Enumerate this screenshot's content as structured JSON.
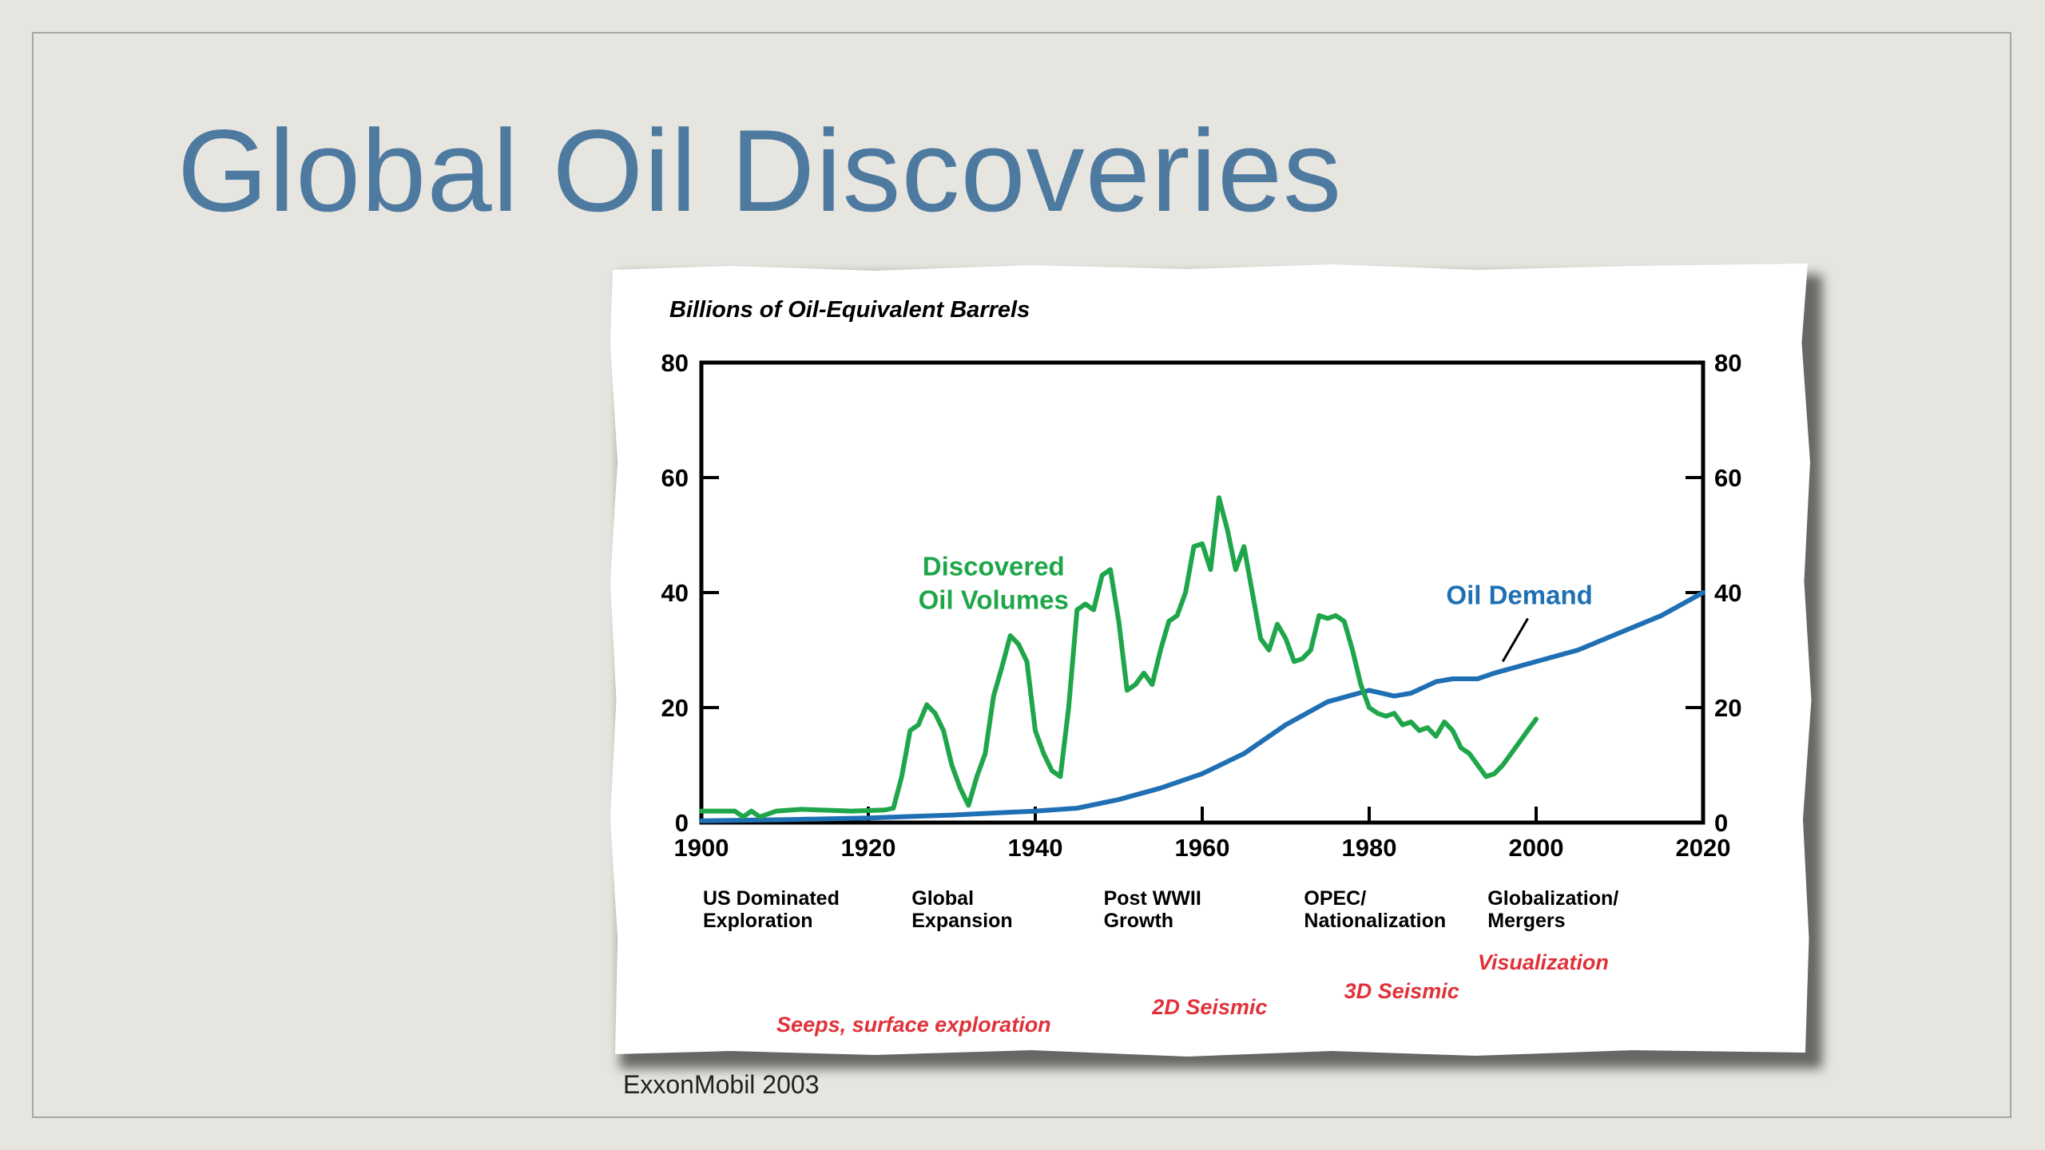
{
  "slide": {
    "title": "Global Oil Discoveries",
    "credit": "ExxonMobil 2003"
  },
  "colors": {
    "title": "#4f7aa0",
    "discovered": "#1fa64a",
    "demand": "#1f6fb4",
    "technology": "#e0323a"
  },
  "chart_data": {
    "type": "line",
    "title": "Billions of Oil-Equivalent Barrels",
    "xlim": [
      1900,
      2020
    ],
    "ylim": [
      0,
      80
    ],
    "x_ticks": [
      "1900",
      "1920",
      "1940",
      "1960",
      "1980",
      "2000",
      "2020"
    ],
    "y_ticks": [
      "0",
      "20",
      "40",
      "60",
      "80"
    ],
    "grid": false,
    "series": [
      {
        "name": "Discovered Oil Volumes",
        "label_lines": [
          "Discovered",
          "Oil Volumes"
        ],
        "color": "#1fa64a",
        "points": [
          [
            1900,
            2
          ],
          [
            1904,
            2
          ],
          [
            1905,
            1
          ],
          [
            1906,
            2
          ],
          [
            1907,
            1
          ],
          [
            1909,
            2
          ],
          [
            1912,
            2.3
          ],
          [
            1918,
            2
          ],
          [
            1922,
            2.2
          ],
          [
            1923,
            2.5
          ],
          [
            1924,
            8
          ],
          [
            1925,
            16
          ],
          [
            1926,
            17
          ],
          [
            1927,
            20.5
          ],
          [
            1928,
            19
          ],
          [
            1929,
            16
          ],
          [
            1930,
            10
          ],
          [
            1931,
            6
          ],
          [
            1932,
            3
          ],
          [
            1933,
            8
          ],
          [
            1934,
            12
          ],
          [
            1935,
            22
          ],
          [
            1936,
            27
          ],
          [
            1937,
            32.5
          ],
          [
            1938,
            31
          ],
          [
            1939,
            28
          ],
          [
            1940,
            16
          ],
          [
            1941,
            12
          ],
          [
            1942,
            9
          ],
          [
            1943,
            8
          ],
          [
            1944,
            20
          ],
          [
            1945,
            37
          ],
          [
            1946,
            38
          ],
          [
            1947,
            37
          ],
          [
            1948,
            43
          ],
          [
            1949,
            44
          ],
          [
            1950,
            35
          ],
          [
            1951,
            23
          ],
          [
            1952,
            24
          ],
          [
            1953,
            26
          ],
          [
            1954,
            24
          ],
          [
            1955,
            30
          ],
          [
            1956,
            35
          ],
          [
            1957,
            36
          ],
          [
            1958,
            40
          ],
          [
            1959,
            48
          ],
          [
            1960,
            48.5
          ],
          [
            1961,
            44
          ],
          [
            1962,
            56.5
          ],
          [
            1963,
            51
          ],
          [
            1964,
            44
          ],
          [
            1965,
            48
          ],
          [
            1966,
            40
          ],
          [
            1967,
            32
          ],
          [
            1968,
            30
          ],
          [
            1969,
            34.5
          ],
          [
            1970,
            32
          ],
          [
            1971,
            28
          ],
          [
            1972,
            28.5
          ],
          [
            1973,
            30
          ],
          [
            1974,
            36
          ],
          [
            1975,
            35.5
          ],
          [
            1976,
            36
          ],
          [
            1977,
            35
          ],
          [
            1978,
            30
          ],
          [
            1979,
            24
          ],
          [
            1980,
            20
          ],
          [
            1981,
            19
          ],
          [
            1982,
            18.5
          ],
          [
            1983,
            19
          ],
          [
            1984,
            17
          ],
          [
            1985,
            17.5
          ],
          [
            1986,
            16
          ],
          [
            1987,
            16.5
          ],
          [
            1988,
            15
          ],
          [
            1989,
            17.5
          ],
          [
            1990,
            16
          ],
          [
            1991,
            13
          ],
          [
            1992,
            12
          ],
          [
            1993,
            10
          ],
          [
            1994,
            8
          ],
          [
            1995,
            8.5
          ],
          [
            1996,
            10
          ],
          [
            1997,
            12
          ],
          [
            1998,
            14
          ],
          [
            1999,
            16
          ],
          [
            2000,
            18
          ]
        ]
      },
      {
        "name": "Oil Demand",
        "label_lines": [
          "Oil Demand"
        ],
        "color": "#1f6fb4",
        "points": [
          [
            1900,
            0.3
          ],
          [
            1910,
            0.5
          ],
          [
            1920,
            0.8
          ],
          [
            1930,
            1.3
          ],
          [
            1940,
            2
          ],
          [
            1945,
            2.5
          ],
          [
            1950,
            4
          ],
          [
            1955,
            6
          ],
          [
            1960,
            8.5
          ],
          [
            1965,
            12
          ],
          [
            1970,
            17
          ],
          [
            1975,
            21
          ],
          [
            1980,
            23
          ],
          [
            1983,
            22
          ],
          [
            1985,
            22.5
          ],
          [
            1988,
            24.5
          ],
          [
            1990,
            25
          ],
          [
            1993,
            25
          ],
          [
            1995,
            26
          ],
          [
            2000,
            28
          ],
          [
            2005,
            30
          ],
          [
            2010,
            33
          ],
          [
            2015,
            36
          ],
          [
            2020,
            40
          ]
        ]
      }
    ],
    "eras": [
      {
        "lines": [
          "US Dominated",
          "Exploration"
        ],
        "x": 1900
      },
      {
        "lines": [
          "Global",
          "Expansion"
        ],
        "x": 1925
      },
      {
        "lines": [
          "Post WWII",
          "Growth"
        ],
        "x": 1948
      },
      {
        "lines": [
          "OPEC/",
          "Nationalization"
        ],
        "x": 1972
      },
      {
        "lines": [
          "Globalization/",
          "Mergers"
        ],
        "x": 1994
      }
    ],
    "technologies": [
      {
        "label": "Visualization",
        "x": 1993
      },
      {
        "label": "3D Seismic",
        "x": 1977
      },
      {
        "label": "2D Seismic",
        "x": 1954
      },
      {
        "label": "Seeps, surface exploration",
        "x": 1909
      }
    ]
  }
}
